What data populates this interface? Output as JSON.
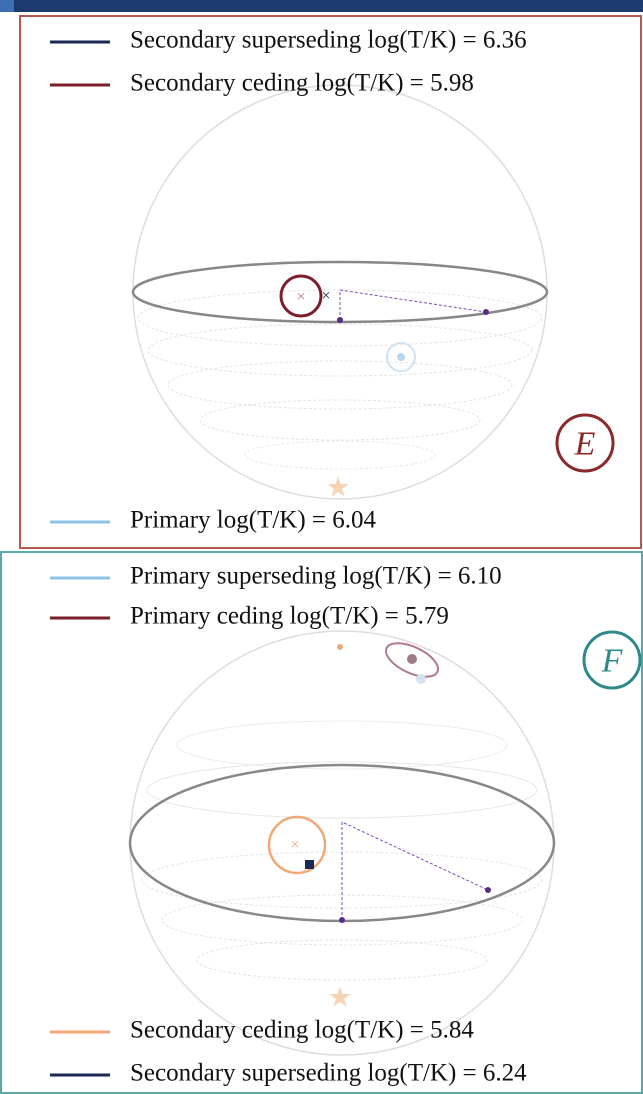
{
  "panels": [
    {
      "label": "E",
      "legend_top": [
        {
          "text": "Secondary superseding log(T/K) = 6.36",
          "color": "#1b2a55"
        },
        {
          "text": "Secondary ceding log(T/K) = 5.98",
          "color": "#7a1f2b"
        }
      ],
      "legend_bottom": [
        {
          "text": "Primary log(T/K) = 6.04",
          "color": "#8ec3e6"
        }
      ]
    },
    {
      "label": "F",
      "legend_top": [
        {
          "text": "Primary superseding log(T/K) = 6.10",
          "color": "#8ec3e6"
        },
        {
          "text": "Primary ceding log(T/K) = 5.79",
          "color": "#7a1f2b"
        }
      ],
      "legend_bottom": [
        {
          "text": "Secondary ceding log(T/K) = 5.84",
          "color": "#f0a877"
        },
        {
          "text": "Secondary superseding log(T/K) = 6.24",
          "color": "#1b2a55"
        }
      ]
    }
  ]
}
